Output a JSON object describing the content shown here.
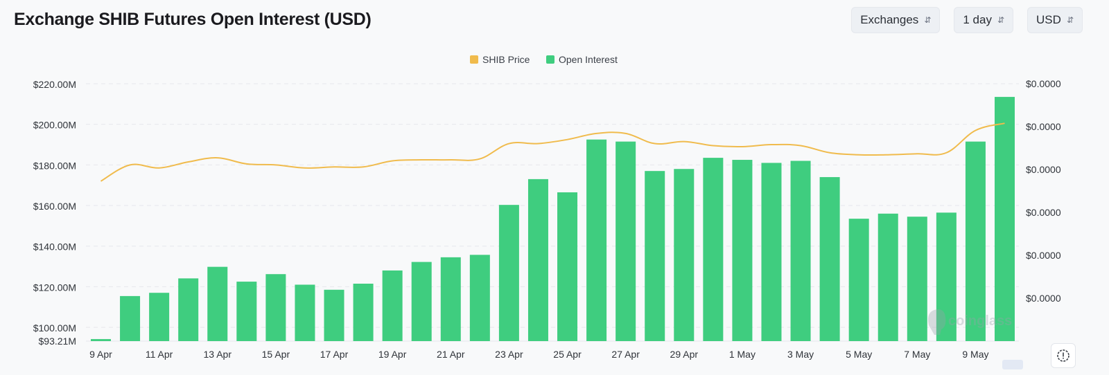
{
  "header": {
    "title": "Exchange SHIB Futures Open Interest (USD)"
  },
  "controls": [
    {
      "label": "Exchanges",
      "icon": "chevron-up-down-icon"
    },
    {
      "label": "1 day",
      "icon": "chevron-up-down-icon"
    },
    {
      "label": "USD",
      "icon": "chevron-up-down-icon"
    }
  ],
  "watermark": "coinglass",
  "chart_data": {
    "type": "bar",
    "title": "Exchange SHIB Futures Open Interest (USD)",
    "dates": [
      "9 Apr",
      "10 Apr",
      "11 Apr",
      "12 Apr",
      "13 Apr",
      "14 Apr",
      "15 Apr",
      "16 Apr",
      "17 Apr",
      "18 Apr",
      "19 Apr",
      "20 Apr",
      "21 Apr",
      "22 Apr",
      "23 Apr",
      "24 Apr",
      "25 Apr",
      "26 Apr",
      "27 Apr",
      "28 Apr",
      "29 Apr",
      "30 Apr",
      "1 May",
      "2 May",
      "3 May",
      "4 May",
      "5 May",
      "6 May",
      "7 May",
      "8 May",
      "9 May",
      "10 May"
    ],
    "x_tick_labels": [
      "9 Apr",
      "11 Apr",
      "13 Apr",
      "15 Apr",
      "17 Apr",
      "19 Apr",
      "21 Apr",
      "23 Apr",
      "25 Apr",
      "27 Apr",
      "29 Apr",
      "1 May",
      "3 May",
      "5 May",
      "7 May",
      "9 May"
    ],
    "left_axis": {
      "ylim": [
        93.21,
        220
      ],
      "ticks": [
        100,
        120,
        140,
        160,
        180,
        200,
        220
      ],
      "tick_labels": [
        "$100.00M",
        "$120.00M",
        "$140.00M",
        "$160.00M",
        "$180.00M",
        "$200.00M",
        "$220.00M"
      ],
      "min_label": "$93.21M",
      "unit": "USD millions"
    },
    "right_axis": {
      "tick_labels": [
        "$0.0000",
        "$0.0000",
        "$0.0000",
        "$0.0000",
        "$0.0000",
        "$0.0000"
      ]
    },
    "legend": {
      "position": "top-center",
      "entries": [
        {
          "name": "SHIB Price",
          "color": "#f0bb4c"
        },
        {
          "name": "Open Interest",
          "color": "#3fcd7f"
        }
      ]
    },
    "series": [
      {
        "name": "Open Interest",
        "type": "bar",
        "color": "#3fcd7f",
        "values": [
          94.2,
          115.4,
          117.0,
          124.1,
          129.8,
          122.5,
          126.2,
          121.0,
          118.5,
          121.5,
          128.0,
          132.2,
          134.5,
          135.7,
          160.3,
          173.0,
          166.5,
          192.5,
          191.5,
          177.0,
          178.0,
          183.5,
          182.5,
          181.0,
          182.0,
          174.0,
          153.5,
          156.0,
          154.5,
          156.5,
          191.5,
          213.5
        ]
      },
      {
        "name": "SHIB Price",
        "type": "line",
        "color": "#f0bb4c",
        "axis": "right",
        "values": [
          172.0,
          180.0,
          178.5,
          181.5,
          183.5,
          180.5,
          180.0,
          178.5,
          179.0,
          179.0,
          182.0,
          182.5,
          182.5,
          183.0,
          190.5,
          190.5,
          192.5,
          195.5,
          195.5,
          190.5,
          191.5,
          189.5,
          189.0,
          190.0,
          189.5,
          186.0,
          185.0,
          185.0,
          185.5,
          186.0,
          197.0,
          200.5
        ]
      }
    ],
    "grid": true
  }
}
